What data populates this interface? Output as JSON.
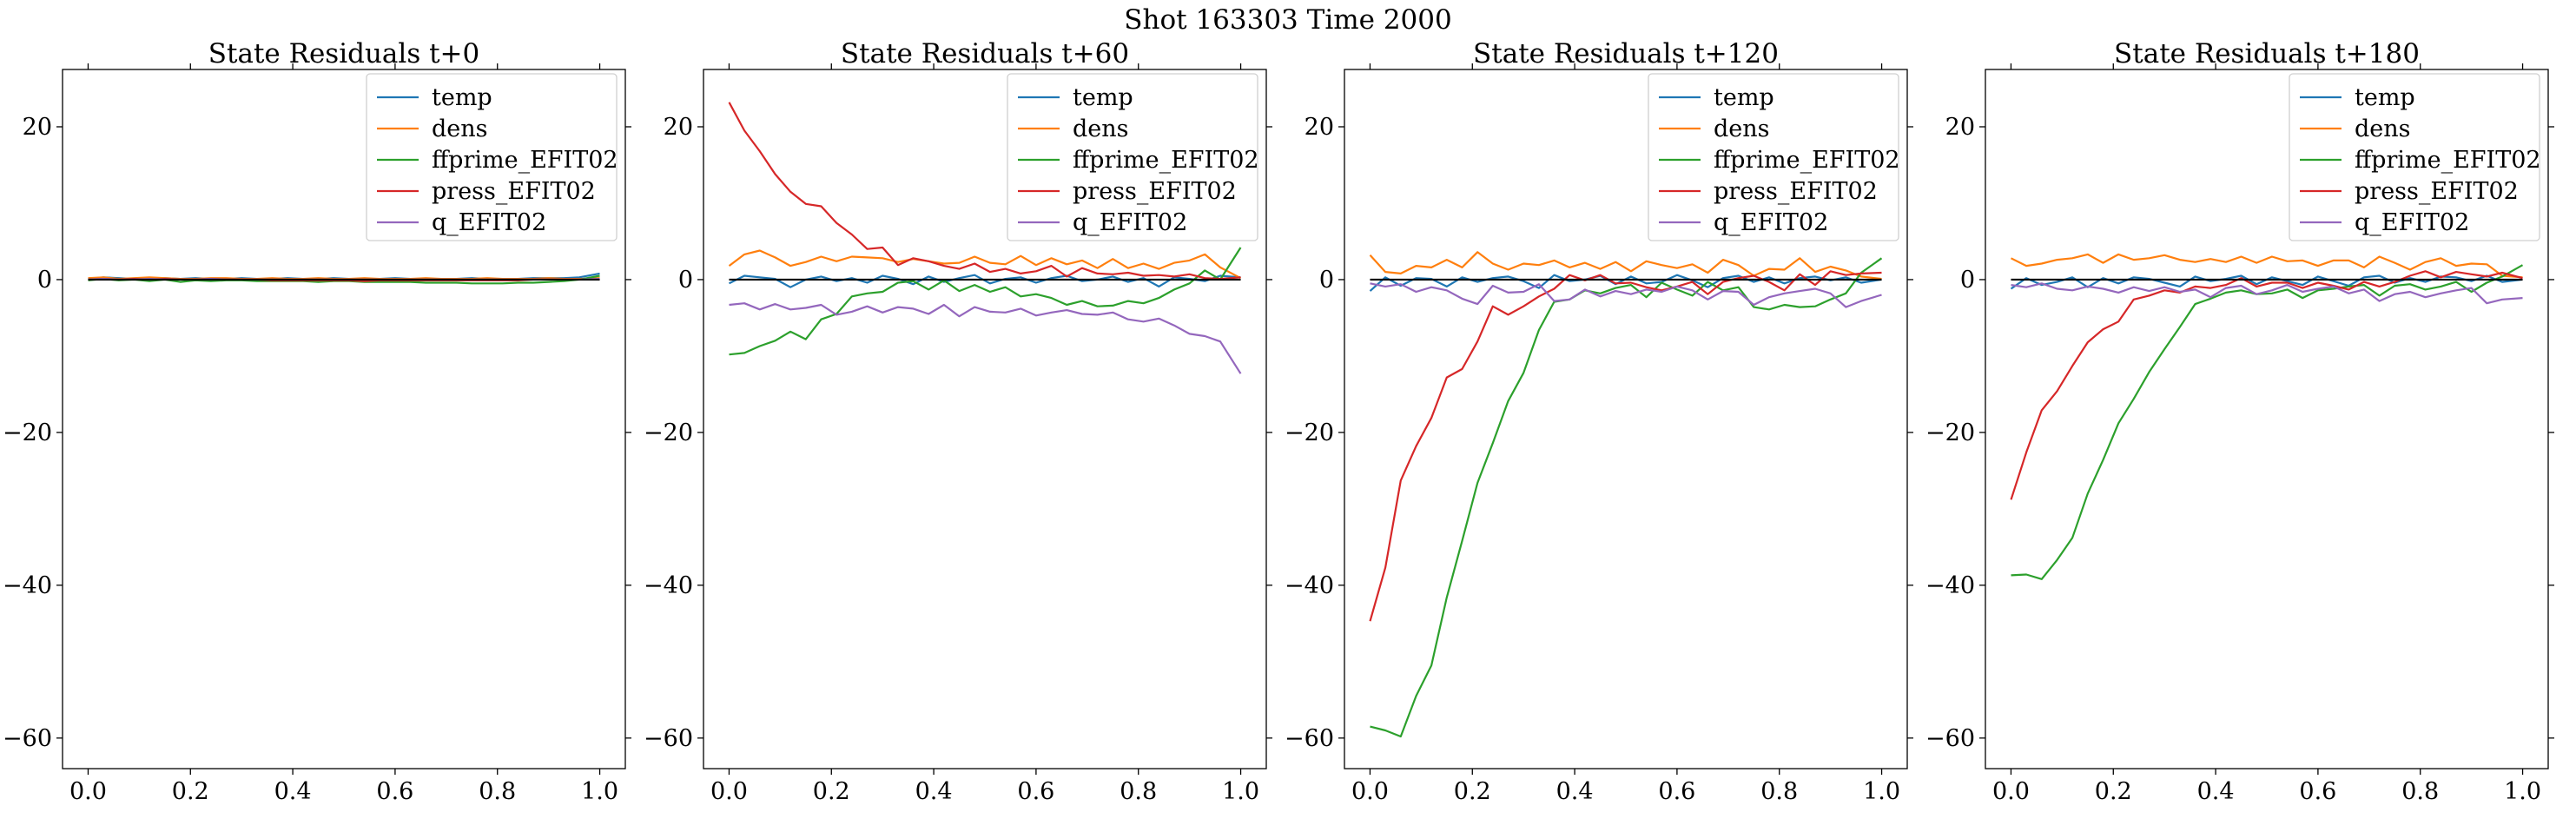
{
  "figure": {
    "suptitle": "Shot 163303   Time 2000"
  },
  "series_colors": {
    "temp": "#1f77b4",
    "dens": "#ff7f0e",
    "ffprime_EFIT02": "#2ca02c",
    "press_EFIT02": "#d62728",
    "q_EFIT02": "#9467bd"
  },
  "chart_data": [
    {
      "type": "line",
      "title": "State Residuals t+0",
      "xlabel": "",
      "ylabel": "",
      "xlim": [
        -0.05,
        1.05
      ],
      "ylim": [
        -64,
        27.5
      ],
      "xticks": [
        0.0,
        0.2,
        0.4,
        0.6,
        0.8,
        1.0
      ],
      "xtick_labels": [
        "0.0",
        "0.2",
        "0.4",
        "0.6",
        "0.8",
        "1.0"
      ],
      "yticks": [
        20,
        0,
        -20,
        -40,
        -60
      ],
      "ytick_labels": [
        "20",
        "0",
        "−20",
        "−40",
        "−60"
      ],
      "grid": false,
      "legend_position": "upper right",
      "baseline": 0,
      "x": [
        0.0,
        0.03,
        0.06,
        0.09,
        0.12,
        0.15,
        0.18,
        0.21,
        0.24,
        0.27,
        0.3,
        0.33,
        0.36,
        0.39,
        0.42,
        0.45,
        0.48,
        0.51,
        0.54,
        0.57,
        0.6,
        0.63,
        0.66,
        0.69,
        0.72,
        0.75,
        0.78,
        0.81,
        0.84,
        0.87,
        0.9,
        0.93,
        0.96,
        1.0
      ],
      "series": [
        {
          "name": "temp",
          "values": [
            0.1,
            0.3,
            0.2,
            0.1,
            0.2,
            0.2,
            0.1,
            0.2,
            0.1,
            0.1,
            0.2,
            0.1,
            0.1,
            0.2,
            0.1,
            0.1,
            0.2,
            0.1,
            0.1,
            0.1,
            0.2,
            0.1,
            0.1,
            0.1,
            0.1,
            0.2,
            0.1,
            0.1,
            0.1,
            0.2,
            0.2,
            0.2,
            0.3,
            0.8
          ]
        },
        {
          "name": "dens",
          "values": [
            0.2,
            0.3,
            0.1,
            0.2,
            0.3,
            0.2,
            0.1,
            0.1,
            0.2,
            0.2,
            0.1,
            0.1,
            0.2,
            0.1,
            0.1,
            0.2,
            0.1,
            0.1,
            0.2,
            0.1,
            0.1,
            0.1,
            0.2,
            0.1,
            0.1,
            0.1,
            0.2,
            0.1,
            0.1,
            0.1,
            0.2,
            0.1,
            0.1,
            0.2
          ]
        },
        {
          "name": "ffprime_EFIT02",
          "values": [
            -0.1,
            0.1,
            -0.1,
            0.0,
            -0.2,
            0.0,
            -0.3,
            -0.1,
            -0.2,
            -0.1,
            -0.1,
            -0.2,
            -0.2,
            -0.2,
            -0.2,
            -0.3,
            -0.2,
            -0.2,
            -0.3,
            -0.3,
            -0.3,
            -0.3,
            -0.4,
            -0.4,
            -0.4,
            -0.5,
            -0.5,
            -0.5,
            -0.4,
            -0.4,
            -0.3,
            -0.2,
            0.0,
            0.5
          ]
        },
        {
          "name": "press_EFIT02",
          "values": [
            0.0,
            0.1,
            0.0,
            0.1,
            0.0,
            0.1,
            0.0,
            0.0,
            0.1,
            0.0,
            0.0,
            0.0,
            -0.1,
            -0.1,
            -0.1,
            -0.1,
            -0.1,
            -0.1,
            -0.2,
            -0.1,
            -0.1,
            -0.1,
            -0.1,
            -0.1,
            -0.1,
            -0.1,
            -0.1,
            -0.1,
            -0.1,
            0.0,
            0.0,
            0.0,
            0.0,
            0.0
          ]
        },
        {
          "name": "q_EFIT02",
          "values": [
            0.0,
            0.1,
            0.0,
            0.0,
            0.1,
            0.0,
            0.0,
            0.0,
            0.1,
            0.0,
            0.0,
            0.0,
            0.0,
            0.0,
            0.0,
            0.0,
            0.0,
            0.0,
            0.0,
            0.0,
            0.0,
            0.0,
            0.0,
            0.0,
            0.0,
            0.0,
            0.0,
            0.0,
            0.0,
            0.0,
            0.0,
            0.0,
            0.0,
            0.1
          ]
        }
      ]
    },
    {
      "type": "line",
      "title": "State Residuals t+60",
      "xlabel": "",
      "ylabel": "",
      "xlim": [
        -0.05,
        1.05
      ],
      "ylim": [
        -64,
        27.5
      ],
      "xticks": [
        0.0,
        0.2,
        0.4,
        0.6,
        0.8,
        1.0
      ],
      "xtick_labels": [
        "0.0",
        "0.2",
        "0.4",
        "0.6",
        "0.8",
        "1.0"
      ],
      "yticks": [
        20,
        0,
        -20,
        -40,
        -60
      ],
      "ytick_labels": [
        "20",
        "0",
        "−20",
        "−40",
        "−60"
      ],
      "grid": false,
      "legend_position": "upper right",
      "baseline": 0,
      "x": [
        0.0,
        0.03,
        0.06,
        0.09,
        0.12,
        0.15,
        0.18,
        0.21,
        0.24,
        0.27,
        0.3,
        0.33,
        0.36,
        0.39,
        0.42,
        0.45,
        0.48,
        0.51,
        0.54,
        0.57,
        0.6,
        0.63,
        0.66,
        0.69,
        0.72,
        0.75,
        0.78,
        0.81,
        0.84,
        0.87,
        0.9,
        0.93,
        0.96,
        1.0
      ],
      "series": [
        {
          "name": "temp",
          "values": [
            -0.5,
            0.5,
            0.3,
            0.1,
            -1.0,
            0.0,
            0.4,
            -0.2,
            0.2,
            -0.4,
            0.5,
            0.1,
            -0.6,
            0.4,
            -0.3,
            0.2,
            0.6,
            -0.5,
            0.1,
            0.3,
            -0.4,
            0.2,
            0.5,
            -0.2,
            0.0,
            0.4,
            -0.3,
            0.2,
            -0.9,
            0.3,
            0.1,
            -0.2,
            0.5,
            0.3
          ]
        },
        {
          "name": "dens",
          "values": [
            1.8,
            3.3,
            3.8,
            2.9,
            1.8,
            2.3,
            3.0,
            2.4,
            3.0,
            2.9,
            2.8,
            2.3,
            2.7,
            2.4,
            2.1,
            2.2,
            3.0,
            2.2,
            2.0,
            3.1,
            1.9,
            2.8,
            2.0,
            2.5,
            1.5,
            2.7,
            1.5,
            2.1,
            1.4,
            2.2,
            2.5,
            3.3,
            1.6,
            0.2
          ]
        },
        {
          "name": "ffprime_EFIT02",
          "values": [
            -9.8,
            -9.6,
            -8.7,
            -8.0,
            -6.8,
            -7.8,
            -5.2,
            -4.5,
            -2.2,
            -1.8,
            -1.6,
            -0.4,
            -0.2,
            -1.3,
            -0.1,
            -1.5,
            -0.7,
            -1.6,
            -1.0,
            -2.2,
            -1.9,
            -2.4,
            -3.3,
            -2.8,
            -3.5,
            -3.4,
            -2.8,
            -3.1,
            -2.4,
            -1.3,
            -0.5,
            1.2,
            0.0,
            4.2
          ]
        },
        {
          "name": "press_EFIT02",
          "values": [
            23.2,
            19.5,
            16.8,
            13.8,
            11.5,
            9.9,
            9.6,
            7.4,
            5.9,
            4.0,
            4.2,
            1.9,
            2.8,
            2.4,
            1.8,
            1.4,
            2.1,
            1.0,
            1.4,
            0.8,
            1.1,
            1.8,
            0.4,
            1.5,
            0.8,
            0.7,
            0.9,
            0.5,
            0.6,
            0.4,
            0.7,
            0.2,
            0.1,
            0.3
          ]
        },
        {
          "name": "q_EFIT02",
          "values": [
            -3.3,
            -3.1,
            -3.9,
            -3.2,
            -3.9,
            -3.7,
            -3.3,
            -4.6,
            -4.2,
            -3.5,
            -4.3,
            -3.6,
            -3.8,
            -4.5,
            -3.3,
            -4.8,
            -3.6,
            -4.2,
            -4.3,
            -3.8,
            -4.7,
            -4.3,
            -4.0,
            -4.5,
            -4.6,
            -4.3,
            -5.2,
            -5.5,
            -5.1,
            -6.0,
            -7.1,
            -7.4,
            -8.1,
            -12.3
          ]
        }
      ]
    },
    {
      "type": "line",
      "title": "State Residuals t+120",
      "xlabel": "",
      "ylabel": "",
      "xlim": [
        -0.05,
        1.05
      ],
      "ylim": [
        -64,
        27.5
      ],
      "xticks": [
        0.0,
        0.2,
        0.4,
        0.6,
        0.8,
        1.0
      ],
      "xtick_labels": [
        "0.0",
        "0.2",
        "0.4",
        "0.6",
        "0.8",
        "1.0"
      ],
      "yticks": [
        20,
        0,
        -20,
        -40,
        -60
      ],
      "ytick_labels": [
        "20",
        "0",
        "−20",
        "−40",
        "−60"
      ],
      "grid": false,
      "legend_position": "upper right",
      "baseline": 0,
      "x": [
        0.0,
        0.03,
        0.06,
        0.09,
        0.12,
        0.15,
        0.18,
        0.21,
        0.24,
        0.27,
        0.3,
        0.33,
        0.36,
        0.39,
        0.42,
        0.45,
        0.48,
        0.51,
        0.54,
        0.57,
        0.6,
        0.63,
        0.66,
        0.69,
        0.72,
        0.75,
        0.78,
        0.81,
        0.84,
        0.87,
        0.9,
        0.93,
        0.96,
        1.0
      ],
      "series": [
        {
          "name": "temp",
          "values": [
            -1.5,
            0.3,
            -0.8,
            0.2,
            0.1,
            -0.9,
            0.3,
            -0.3,
            0.2,
            0.4,
            -0.2,
            -1.1,
            0.6,
            -0.2,
            0.0,
            0.5,
            -0.6,
            0.4,
            -0.5,
            -0.3,
            0.6,
            -0.1,
            -1.0,
            0.2,
            0.5,
            -0.3,
            0.3,
            -0.5,
            0.2,
            0.4,
            -0.1,
            0.3,
            -0.4,
            0.0
          ]
        },
        {
          "name": "dens",
          "values": [
            3.2,
            1.0,
            0.8,
            1.8,
            1.6,
            2.6,
            1.6,
            3.6,
            2.1,
            1.3,
            2.1,
            1.9,
            2.5,
            1.6,
            2.2,
            1.4,
            2.3,
            1.1,
            2.4,
            1.9,
            1.5,
            2.0,
            0.9,
            2.6,
            1.9,
            0.5,
            1.4,
            1.3,
            2.8,
            1.0,
            1.7,
            1.2,
            0.4,
            0.1
          ]
        },
        {
          "name": "ffprime_EFIT02",
          "values": [
            -58.5,
            -59.0,
            -59.8,
            -54.5,
            -50.5,
            -41.6,
            -34.2,
            -26.6,
            -21.4,
            -15.9,
            -12.2,
            -6.6,
            -2.9,
            -2.6,
            -1.4,
            -1.8,
            -1.1,
            -0.7,
            -2.3,
            -0.4,
            -1.3,
            -2.1,
            -0.3,
            -1.4,
            -1.0,
            -3.6,
            -3.9,
            -3.3,
            -3.6,
            -3.5,
            -2.6,
            -1.8,
            0.9,
            2.8
          ]
        },
        {
          "name": "press_EFIT02",
          "values": [
            -44.7,
            -37.7,
            -26.3,
            -21.8,
            -18.1,
            -12.8,
            -11.7,
            -8.1,
            -3.5,
            -4.6,
            -3.5,
            -2.2,
            -1.2,
            0.6,
            -0.1,
            0.6,
            -0.5,
            -0.4,
            -1.0,
            -1.4,
            -0.9,
            -0.3,
            -1.9,
            -0.3,
            0.2,
            0.5,
            -0.3,
            -1.4,
            0.7,
            -0.7,
            1.1,
            0.6,
            0.8,
            0.9
          ]
        },
        {
          "name": "q_EFIT02",
          "values": [
            -0.5,
            -0.9,
            -0.6,
            -1.6,
            -1.0,
            -1.4,
            -2.5,
            -3.2,
            -0.8,
            -1.7,
            -1.6,
            -0.6,
            -2.8,
            -2.6,
            -1.3,
            -2.2,
            -1.5,
            -1.9,
            -1.3,
            -1.6,
            -0.9,
            -1.4,
            -2.6,
            -1.5,
            -1.6,
            -3.3,
            -2.3,
            -1.8,
            -1.5,
            -1.2,
            -1.8,
            -3.6,
            -2.8,
            -2.0
          ]
        }
      ]
    },
    {
      "type": "line",
      "title": "State Residuals t+180",
      "xlabel": "",
      "ylabel": "",
      "xlim": [
        -0.05,
        1.05
      ],
      "ylim": [
        -64,
        27.5
      ],
      "xticks": [
        0.0,
        0.2,
        0.4,
        0.6,
        0.8,
        1.0
      ],
      "xtick_labels": [
        "0.0",
        "0.2",
        "0.4",
        "0.6",
        "0.8",
        "1.0"
      ],
      "yticks": [
        20,
        0,
        -20,
        -40,
        -60
      ],
      "ytick_labels": [
        "20",
        "0",
        "−20",
        "−40",
        "−60"
      ],
      "grid": false,
      "legend_position": "upper right",
      "baseline": 0,
      "x": [
        0.0,
        0.03,
        0.06,
        0.09,
        0.12,
        0.15,
        0.18,
        0.21,
        0.24,
        0.27,
        0.3,
        0.33,
        0.36,
        0.39,
        0.42,
        0.45,
        0.48,
        0.51,
        0.54,
        0.57,
        0.6,
        0.63,
        0.66,
        0.69,
        0.72,
        0.75,
        0.78,
        0.81,
        0.84,
        0.87,
        0.9,
        0.93,
        0.96,
        1.0
      ],
      "series": [
        {
          "name": "temp",
          "values": [
            -1.2,
            0.2,
            -0.7,
            -0.3,
            0.3,
            -1.0,
            0.2,
            -0.5,
            0.3,
            0.1,
            -0.4,
            -0.9,
            0.4,
            -0.2,
            0.1,
            0.5,
            -0.6,
            0.3,
            -0.2,
            -0.7,
            0.4,
            -0.2,
            -0.8,
            0.3,
            0.5,
            -0.4,
            0.2,
            -0.3,
            0.4,
            0.3,
            -0.2,
            0.5,
            -0.3,
            0.0
          ]
        },
        {
          "name": "dens",
          "values": [
            2.8,
            1.8,
            2.1,
            2.6,
            2.8,
            3.3,
            2.2,
            3.3,
            2.6,
            2.8,
            3.2,
            2.6,
            2.3,
            2.7,
            2.3,
            3.0,
            2.2,
            3.0,
            2.4,
            2.5,
            1.8,
            2.5,
            2.5,
            1.6,
            3.0,
            2.2,
            1.3,
            2.3,
            2.8,
            1.8,
            2.1,
            2.0,
            0.5,
            0.3
          ]
        },
        {
          "name": "ffprime_EFIT02",
          "values": [
            -38.7,
            -38.6,
            -39.2,
            -36.7,
            -33.8,
            -28.0,
            -23.6,
            -18.8,
            -15.6,
            -12.1,
            -9.1,
            -6.2,
            -3.2,
            -2.5,
            -1.7,
            -1.4,
            -1.9,
            -1.8,
            -1.3,
            -2.4,
            -1.4,
            -1.2,
            -0.9,
            -0.7,
            -2.1,
            -0.8,
            -0.6,
            -1.3,
            -0.9,
            -0.3,
            -1.6,
            -0.4,
            0.4,
            1.9
          ]
        },
        {
          "name": "press_EFIT02",
          "values": [
            -28.8,
            -22.6,
            -17.1,
            -14.6,
            -11.3,
            -8.2,
            -6.5,
            -5.5,
            -2.6,
            -2.1,
            -1.4,
            -1.7,
            -0.9,
            -1.1,
            -0.7,
            0.2,
            -0.9,
            -0.4,
            -0.4,
            -1.1,
            -0.4,
            -0.8,
            -1.3,
            -0.3,
            -0.9,
            -0.3,
            0.5,
            1.1,
            0.3,
            1.0,
            0.7,
            0.4,
            0.9,
            0.2
          ]
        },
        {
          "name": "q_EFIT02",
          "values": [
            -0.7,
            -1.0,
            -0.5,
            -1.2,
            -1.4,
            -0.9,
            -1.2,
            -1.7,
            -1.0,
            -1.5,
            -1.0,
            -1.6,
            -1.3,
            -2.3,
            -1.1,
            -0.8,
            -1.9,
            -1.4,
            -0.7,
            -1.6,
            -1.2,
            -0.9,
            -1.8,
            -1.3,
            -2.8,
            -1.9,
            -1.6,
            -2.3,
            -1.8,
            -1.4,
            -1.1,
            -3.1,
            -2.6,
            -2.4
          ]
        }
      ]
    }
  ]
}
